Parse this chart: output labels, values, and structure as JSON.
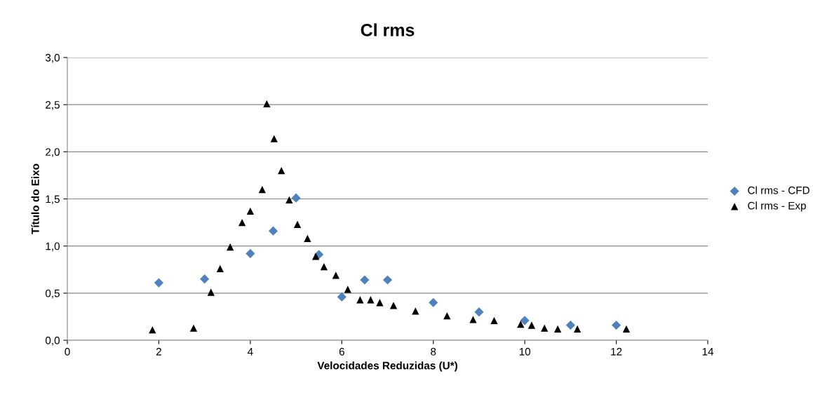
{
  "chart_data": {
    "type": "scatter",
    "title": "Cl rms",
    "xlabel": "Velocidades Reduzidas (U*)",
    "ylabel": "Título do Eixo",
    "xlim": [
      0,
      14
    ],
    "xticks": [
      0,
      2,
      4,
      6,
      8,
      10,
      12,
      14
    ],
    "ylim": [
      0,
      3.0
    ],
    "yticks": [
      {
        "value": 0,
        "label": "0,0"
      },
      {
        "value": 0.5,
        "label": "0,5"
      },
      {
        "value": 1.0,
        "label": "1,0"
      },
      {
        "value": 1.5,
        "label": "1,5"
      },
      {
        "value": 2.0,
        "label": "2,0"
      },
      {
        "value": 2.5,
        "label": "2,5"
      },
      {
        "value": 3.0,
        "label": "3,0"
      }
    ],
    "grid": "y",
    "legend": "right",
    "series": [
      {
        "name": "Cl rms - CFD",
        "color": "#4f81bd",
        "marker": "diamond",
        "x": [
          2,
          3,
          4,
          4.5,
          5,
          5.5,
          6,
          6.5,
          7,
          8,
          9,
          10,
          11,
          12
        ],
        "values": [
          0.61,
          0.65,
          0.92,
          1.16,
          1.51,
          0.91,
          0.46,
          0.64,
          0.64,
          0.4,
          0.3,
          0.21,
          0.16,
          0.16
        ]
      },
      {
        "name": "Cl rms - Exp",
        "color": "#000000",
        "marker": "triangle",
        "x": [
          1.86,
          2.76,
          3.14,
          3.34,
          3.56,
          3.82,
          4.0,
          4.26,
          4.36,
          4.52,
          4.68,
          4.85,
          5.03,
          5.25,
          5.43,
          5.61,
          5.87,
          6.13,
          6.4,
          6.63,
          6.83,
          7.13,
          7.61,
          8.3,
          8.87,
          9.33,
          9.91,
          10.15,
          10.43,
          10.72,
          11.15,
          12.22
        ],
        "values": [
          0.11,
          0.13,
          0.51,
          0.76,
          0.99,
          1.25,
          1.37,
          1.6,
          2.51,
          2.14,
          1.8,
          1.49,
          1.23,
          1.08,
          0.89,
          0.78,
          0.69,
          0.54,
          0.43,
          0.43,
          0.4,
          0.37,
          0.31,
          0.26,
          0.22,
          0.21,
          0.17,
          0.16,
          0.13,
          0.12,
          0.12,
          0.12
        ]
      }
    ]
  }
}
